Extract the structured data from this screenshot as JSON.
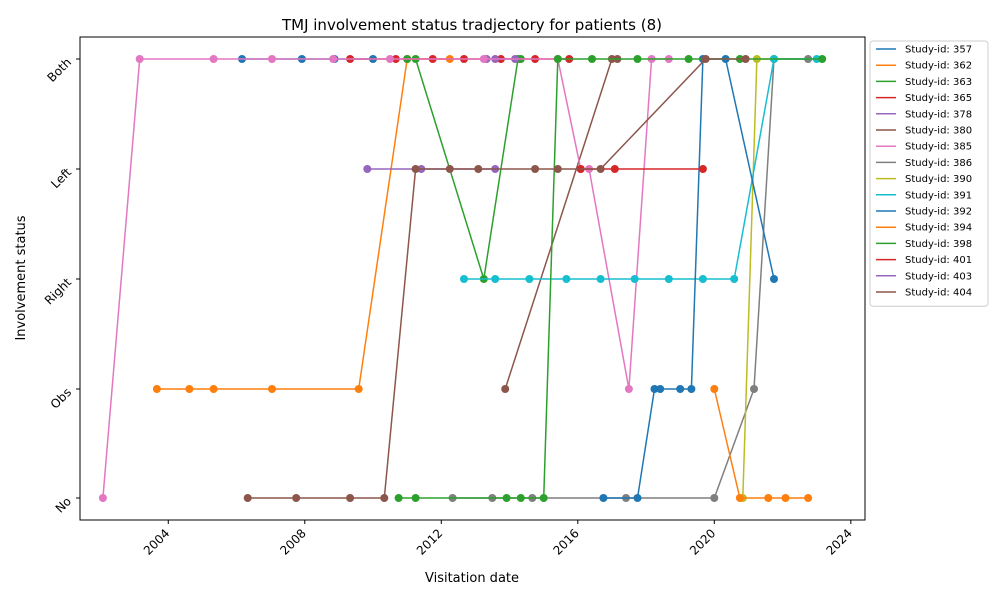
{
  "chart_data": {
    "type": "line",
    "title": "TMJ involvement status tradjectory for patients (8)",
    "xlabel": "Visitation date",
    "ylabel": "Involvement status",
    "x_ticks": [
      "2004",
      "2008",
      "2012",
      "2016",
      "2020",
      "2024"
    ],
    "y_categories": [
      "No",
      "Obs",
      "Right",
      "Left",
      "Both"
    ],
    "xlim": [
      "2001-06-01",
      "2024-06-01"
    ],
    "legend_position": "outside-right",
    "series": [
      {
        "name": "Study-id: 357",
        "color": "#1f77b4",
        "points": [
          [
            "2006-03-01",
            "Both"
          ],
          [
            "2007-12-01",
            "Both"
          ],
          [
            "2008-11-15",
            "Both"
          ],
          [
            "2010-01-01",
            "Both"
          ]
        ]
      },
      {
        "name": "Study-id: 362",
        "color": "#ff7f0e",
        "points": [
          [
            "2003-09-01",
            "Obs"
          ],
          [
            "2004-08-15",
            "Obs"
          ],
          [
            "2005-05-01",
            "Obs"
          ],
          [
            "2007-01-15",
            "Obs"
          ],
          [
            "2009-08-01",
            "Obs"
          ],
          [
            "2011-01-01",
            "Both"
          ],
          [
            "2012-04-01",
            "Both"
          ]
        ]
      },
      {
        "name": "Study-id: 363",
        "color": "#2ca02c",
        "points": [
          [
            "2011-01-01",
            "Both"
          ],
          [
            "2011-04-01",
            "Both"
          ],
          [
            "2013-04-01",
            "Right"
          ],
          [
            "2014-04-01",
            "Both"
          ],
          [
            "2014-05-01",
            "Both"
          ]
        ]
      },
      {
        "name": "Study-id: 365",
        "color": "#d62728",
        "points": [
          [
            "2009-05-01",
            "Both"
          ],
          [
            "2010-09-01",
            "Both"
          ],
          [
            "2011-10-01",
            "Both"
          ],
          [
            "2012-09-01",
            "Both"
          ],
          [
            "2013-10-01",
            "Both"
          ],
          [
            "2014-10-01",
            "Both"
          ],
          [
            "2015-10-01",
            "Both"
          ]
        ]
      },
      {
        "name": "Study-id: 378",
        "color": "#9467bd",
        "points": [
          [
            "2013-05-01",
            "Both"
          ],
          [
            "2013-08-01",
            "Both"
          ],
          [
            "2014-03-01",
            "Both"
          ]
        ]
      },
      {
        "name": "Study-id: 380",
        "color": "#8c564b",
        "points": [
          [
            "2013-11-15",
            "Obs"
          ],
          [
            "2017-01-01",
            "Both"
          ],
          [
            "2017-03-01",
            "Both"
          ]
        ]
      },
      {
        "name": "Study-id: 385",
        "color": "#e377c2",
        "points": [
          [
            "2002-02-01",
            "No"
          ],
          [
            "2003-03-01",
            "Both"
          ],
          [
            "2005-05-01",
            "Both"
          ],
          [
            "2007-01-15",
            "Both"
          ],
          [
            "2008-11-01",
            "Both"
          ],
          [
            "2010-07-01",
            "Both"
          ],
          [
            "2013-04-01",
            "Both"
          ],
          [
            "2015-06-01",
            "Both"
          ],
          [
            "2016-02-01",
            "Left"
          ],
          [
            "2016-05-01",
            "Left"
          ],
          [
            "2017-07-01",
            "Obs"
          ],
          [
            "2018-03-01",
            "Both"
          ],
          [
            "2018-09-01",
            "Both"
          ]
        ]
      },
      {
        "name": "Study-id: 386",
        "color": "#7f7f7f",
        "points": [
          [
            "2012-05-01",
            "No"
          ],
          [
            "2013-07-01",
            "No"
          ],
          [
            "2014-09-01",
            "No"
          ],
          [
            "2017-06-01",
            "No"
          ],
          [
            "2020-01-01",
            "No"
          ],
          [
            "2021-03-01",
            "Obs"
          ],
          [
            "2021-10-01",
            "Both"
          ],
          [
            "2022-10-01",
            "Both"
          ]
        ]
      },
      {
        "name": "Study-id: 390",
        "color": "#bcbd22",
        "points": [
          [
            "2020-11-01",
            "No"
          ],
          [
            "2021-04-01",
            "Both"
          ],
          [
            "2021-10-01",
            "Both"
          ]
        ]
      },
      {
        "name": "Study-id: 391",
        "color": "#17becf",
        "points": [
          [
            "2012-09-01",
            "Right"
          ],
          [
            "2013-08-01",
            "Right"
          ],
          [
            "2014-08-01",
            "Right"
          ],
          [
            "2015-09-01",
            "Right"
          ],
          [
            "2016-09-01",
            "Right"
          ],
          [
            "2017-09-01",
            "Right"
          ],
          [
            "2018-09-01",
            "Right"
          ],
          [
            "2019-09-01",
            "Right"
          ],
          [
            "2020-08-01",
            "Right"
          ],
          [
            "2021-10-01",
            "Both"
          ],
          [
            "2023-01-01",
            "Both"
          ]
        ]
      },
      {
        "name": "Study-id: 392",
        "color": "#1f77b4",
        "points": [
          [
            "2016-10-01",
            "No"
          ],
          [
            "2017-10-01",
            "No"
          ],
          [
            "2018-04-01",
            "Obs"
          ],
          [
            "2018-06-01",
            "Obs"
          ],
          [
            "2019-01-01",
            "Obs"
          ],
          [
            "2019-05-01",
            "Obs"
          ],
          [
            "2019-09-01",
            "Both"
          ],
          [
            "2020-05-01",
            "Both"
          ],
          [
            "2021-10-01",
            "Right"
          ]
        ]
      },
      {
        "name": "Study-id: 394",
        "color": "#ff7f0e",
        "points": [
          [
            "2020-01-01",
            "Obs"
          ],
          [
            "2020-10-01",
            "No"
          ],
          [
            "2021-08-01",
            "No"
          ],
          [
            "2022-02-01",
            "No"
          ],
          [
            "2022-10-01",
            "No"
          ]
        ]
      },
      {
        "name": "Study-id: 398",
        "color": "#2ca02c",
        "points": [
          [
            "2010-10-01",
            "No"
          ],
          [
            "2011-04-01",
            "No"
          ],
          [
            "2013-12-01",
            "No"
          ],
          [
            "2014-05-01",
            "No"
          ],
          [
            "2015-01-01",
            "No"
          ],
          [
            "2015-06-01",
            "Both"
          ],
          [
            "2016-06-01",
            "Both"
          ],
          [
            "2017-10-01",
            "Both"
          ],
          [
            "2019-04-01",
            "Both"
          ],
          [
            "2020-10-01",
            "Both"
          ],
          [
            "2023-03-01",
            "Both"
          ]
        ]
      },
      {
        "name": "Study-id: 401",
        "color": "#d62728",
        "points": [
          [
            "2016-02-01",
            "Left"
          ],
          [
            "2017-02-01",
            "Left"
          ],
          [
            "2019-09-01",
            "Left"
          ]
        ]
      },
      {
        "name": "Study-id: 403",
        "color": "#9467bd",
        "points": [
          [
            "2009-11-01",
            "Left"
          ],
          [
            "2011-06-01",
            "Left"
          ],
          [
            "2013-08-01",
            "Left"
          ]
        ]
      },
      {
        "name": "Study-id: 404",
        "color": "#8c564b",
        "points": [
          [
            "2006-05-01",
            "No"
          ],
          [
            "2007-10-01",
            "No"
          ],
          [
            "2009-05-01",
            "No"
          ],
          [
            "2010-05-01",
            "No"
          ],
          [
            "2011-04-01",
            "Left"
          ],
          [
            "2012-04-01",
            "Left"
          ],
          [
            "2013-02-01",
            "Left"
          ],
          [
            "2014-10-01",
            "Left"
          ],
          [
            "2015-06-01",
            "Left"
          ],
          [
            "2016-09-01",
            "Left"
          ],
          [
            "2019-10-01",
            "Both"
          ],
          [
            "2020-12-01",
            "Both"
          ]
        ]
      }
    ]
  }
}
